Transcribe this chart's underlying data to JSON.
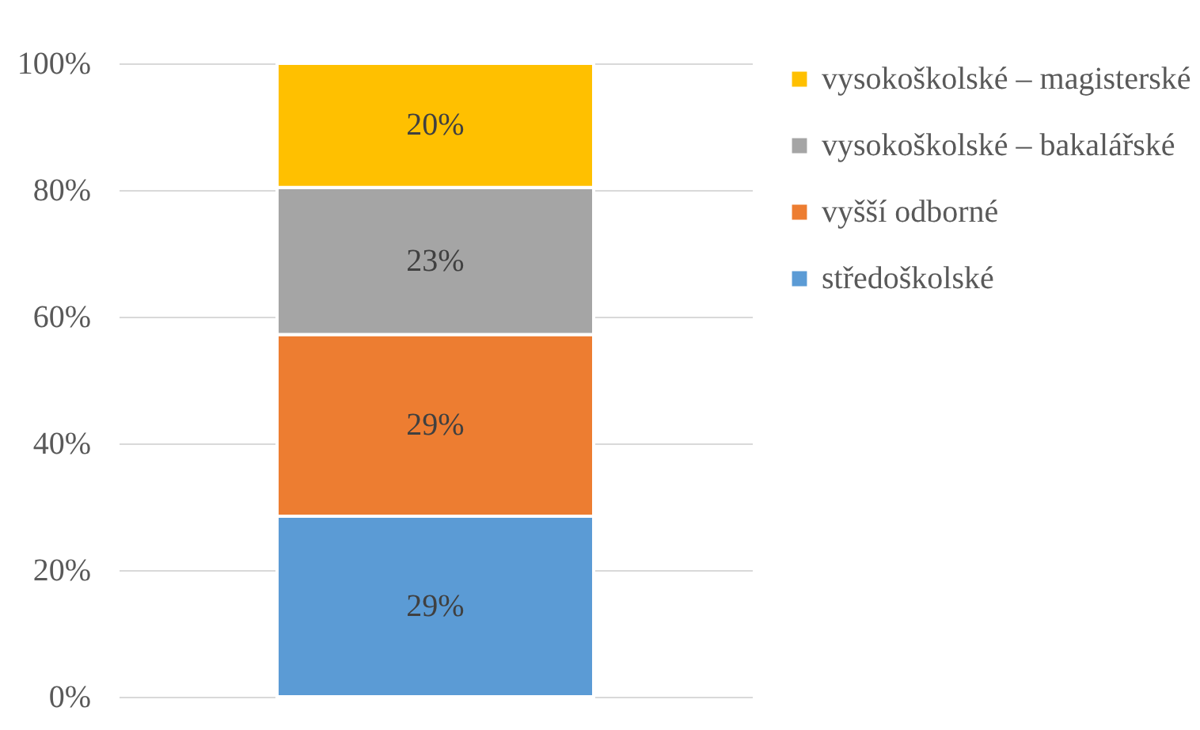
{
  "chart_data": {
    "type": "bar",
    "stacked": true,
    "categories": [
      null
    ],
    "series": [
      {
        "name": "středoškolské",
        "color": "#5b9bd5",
        "values": [
          28.5
        ],
        "value_labels": [
          "29%"
        ]
      },
      {
        "name": "vyšší odborné",
        "color": "#ed7d31",
        "values": [
          28.7
        ],
        "value_labels": [
          "29%"
        ]
      },
      {
        "name": "vysokoškolské – bakalářské",
        "color": "#a5a5a5",
        "values": [
          23.2
        ],
        "value_labels": [
          "23%"
        ]
      },
      {
        "name": "vysokoškolské – magisterské",
        "color": "#ffc000",
        "values": [
          19.6
        ],
        "value_labels": [
          "20%"
        ]
      }
    ],
    "ylim": [
      0,
      100
    ],
    "yticks": [
      {
        "value": 0,
        "label": "0%"
      },
      {
        "value": 20,
        "label": "20%"
      },
      {
        "value": 40,
        "label": "40%"
      },
      {
        "value": 60,
        "label": "60%"
      },
      {
        "value": 80,
        "label": "80%"
      },
      {
        "value": 100,
        "label": "100%"
      }
    ],
    "grid": "y",
    "legend": "right"
  }
}
